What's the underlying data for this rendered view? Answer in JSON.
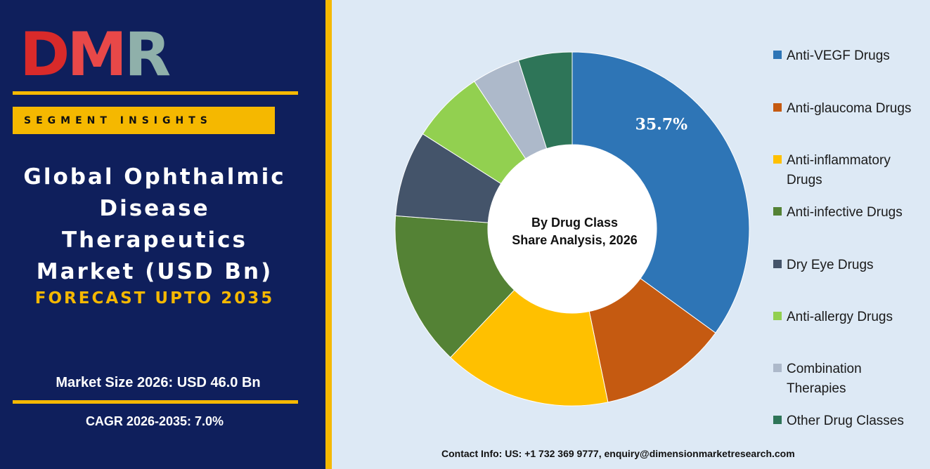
{
  "logo": {
    "letters": [
      "D",
      "M",
      "R"
    ]
  },
  "segment_label": "SEGMENT INSIGHTS",
  "title_lines": [
    "Global Ophthalmic",
    "Disease",
    "Therapeutics",
    "Market (USD Bn)"
  ],
  "forecast": "FORECAST UPTO 2035",
  "market_size": "Market Size 2026: USD 46.0 Bn",
  "cagr": "CAGR 2026-2035: 7.0%",
  "contact": "Contact Info: US: +1 732 369 9777, enquiry@dimensionmarketresearch.com",
  "colors": {
    "panel": "#0f1f5c",
    "accent": "#f5b800",
    "background": "#dde9f5"
  },
  "chart_data": {
    "type": "pie",
    "center_label": [
      "By Drug Class",
      "Share Analysis, 2026"
    ],
    "legend_position": "right",
    "series": [
      {
        "name": "Anti-VEGF Drugs",
        "value": 35.7,
        "color": "#2e75b6",
        "label": "35.7%"
      },
      {
        "name": "Anti-glaucoma Drugs",
        "value": 12.0,
        "color": "#c55a11",
        "label": ""
      },
      {
        "name": "Anti-inflammatory Drugs",
        "value": 15.6,
        "color": "#ffc000",
        "label": ""
      },
      {
        "name": "Anti-infective Drugs",
        "value": 14.4,
        "color": "#548235",
        "label": ""
      },
      {
        "name": "Dry Eye Drugs",
        "value": 8.0,
        "color": "#44546a",
        "label": ""
      },
      {
        "name": "Anti-allergy Drugs",
        "value": 6.8,
        "color": "#92d050",
        "label": ""
      },
      {
        "name": "Combination Therapies",
        "value": 4.5,
        "color": "#adb9ca",
        "label": ""
      },
      {
        "name": "Other Drug Classes",
        "value": 5.0,
        "color": "#2e7558",
        "label": ""
      }
    ]
  }
}
